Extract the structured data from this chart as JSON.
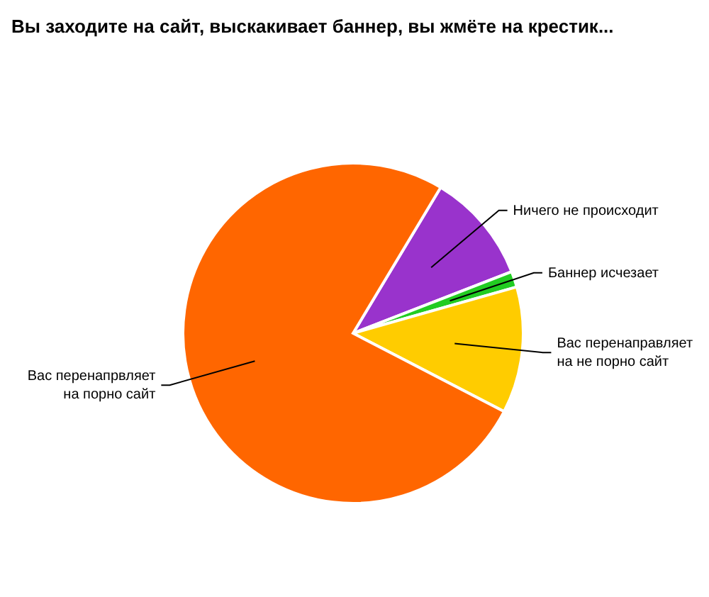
{
  "chart_data": {
    "type": "pie",
    "title": "Вы заходите на сайт, выскакивает баннер, вы жмёте на крестик...",
    "categories": [
      "Ничего не происходит",
      "Баннер исчезает",
      "Вас перенаправляет на не порно сайт",
      "Вас перенапрвляет на порно сайт"
    ],
    "values": [
      10.5,
      1.5,
      12,
      76
    ],
    "colors": [
      "#9933cc",
      "#22cc22",
      "#ffcc00",
      "#ff6600"
    ]
  }
}
